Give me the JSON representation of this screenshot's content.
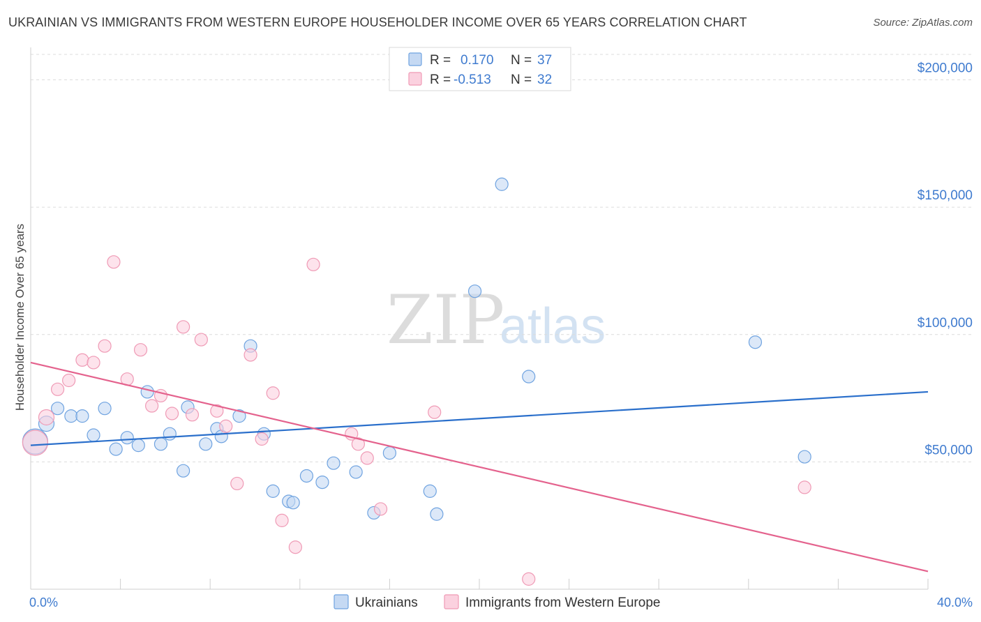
{
  "title": "UKRAINIAN VS IMMIGRANTS FROM WESTERN EUROPE HOUSEHOLDER INCOME OVER 65 YEARS CORRELATION CHART",
  "source": "Source: ZipAtlas.com",
  "watermark": {
    "zip": "ZIP",
    "atlas": "atlas"
  },
  "legend": {
    "rows": [
      {
        "r_label": "R =",
        "r_value": "0.170",
        "n_label": "N =",
        "n_value": "37"
      },
      {
        "r_label": "R =",
        "r_value": "-0.513",
        "n_label": "N =",
        "n_value": "32"
      }
    ]
  },
  "chart_data": {
    "type": "scatter",
    "ylabel": "Householder Income Over 65 years",
    "xlim": [
      0,
      40
    ],
    "ylim": [
      0,
      210000
    ],
    "x_tick_labels": {
      "min": "0.0%",
      "max": "40.0%"
    },
    "y_ticks": [
      {
        "value": 50000,
        "label": "$50,000"
      },
      {
        "value": 100000,
        "label": "$100,000"
      },
      {
        "value": 150000,
        "label": "$150,000"
      },
      {
        "value": 200000,
        "label": "$200,000"
      }
    ],
    "grid": true,
    "legend_position": "top-center",
    "series": [
      {
        "name": "Ukrainians",
        "color": "#6fa3e0",
        "fill": "#c5d9f3",
        "trend_color": "#2a6fcb",
        "trend": {
          "x": [
            0,
            40
          ],
          "y": [
            56500,
            77500
          ]
        },
        "points": [
          [
            0.2,
            58000,
            18
          ],
          [
            0.7,
            65000,
            11
          ],
          [
            1.2,
            71000,
            9
          ],
          [
            1.8,
            68000,
            9
          ],
          [
            2.3,
            68000,
            9
          ],
          [
            2.8,
            60500,
            9
          ],
          [
            3.3,
            71000,
            9
          ],
          [
            3.8,
            55000,
            9
          ],
          [
            4.3,
            59500,
            9
          ],
          [
            4.8,
            56500,
            9
          ],
          [
            5.2,
            77500,
            9
          ],
          [
            5.8,
            57000,
            9
          ],
          [
            6.2,
            61000,
            9
          ],
          [
            6.8,
            46500,
            9
          ],
          [
            7.0,
            71500,
            9
          ],
          [
            7.8,
            57000,
            9
          ],
          [
            8.3,
            63000,
            9
          ],
          [
            8.5,
            60000,
            9
          ],
          [
            9.3,
            68000,
            9
          ],
          [
            9.8,
            95500,
            9
          ],
          [
            10.4,
            61000,
            9
          ],
          [
            10.8,
            38500,
            9
          ],
          [
            11.5,
            34500,
            9
          ],
          [
            11.7,
            34000,
            9
          ],
          [
            12.3,
            44500,
            9
          ],
          [
            13.0,
            42000,
            9
          ],
          [
            13.5,
            49500,
            9
          ],
          [
            14.5,
            46000,
            9
          ],
          [
            15.3,
            30000,
            9
          ],
          [
            16.0,
            53500,
            9
          ],
          [
            17.8,
            38500,
            9
          ],
          [
            18.1,
            29500,
            9
          ],
          [
            19.8,
            117000,
            9
          ],
          [
            21.0,
            159000,
            9
          ],
          [
            22.2,
            83500,
            9
          ],
          [
            32.3,
            97000,
            9
          ],
          [
            34.5,
            52000,
            9
          ]
        ]
      },
      {
        "name": "Immigrants from Western Europe",
        "color": "#ef9ab5",
        "fill": "#fbd1df",
        "trend_color": "#e4628d",
        "trend": {
          "x": [
            0,
            40
          ],
          "y": [
            89000,
            7000
          ]
        },
        "points": [
          [
            0.2,
            57500,
            18
          ],
          [
            0.7,
            67500,
            11
          ],
          [
            1.2,
            78500,
            9
          ],
          [
            1.7,
            82000,
            9
          ],
          [
            2.3,
            90000,
            9
          ],
          [
            2.8,
            89000,
            9
          ],
          [
            3.3,
            95500,
            9
          ],
          [
            3.7,
            128500,
            9
          ],
          [
            4.3,
            82500,
            9
          ],
          [
            4.9,
            94000,
            9
          ],
          [
            5.4,
            72000,
            9
          ],
          [
            5.8,
            76000,
            9
          ],
          [
            6.3,
            69000,
            9
          ],
          [
            6.8,
            103000,
            9
          ],
          [
            7.2,
            68500,
            9
          ],
          [
            7.6,
            98000,
            9
          ],
          [
            8.3,
            70000,
            9
          ],
          [
            8.7,
            64000,
            9
          ],
          [
            9.2,
            41500,
            9
          ],
          [
            9.8,
            92000,
            9
          ],
          [
            10.3,
            59000,
            9
          ],
          [
            10.8,
            77000,
            9
          ],
          [
            11.2,
            27000,
            9
          ],
          [
            11.8,
            16500,
            9
          ],
          [
            12.6,
            127500,
            9
          ],
          [
            14.3,
            61000,
            9
          ],
          [
            14.6,
            57000,
            9
          ],
          [
            15.0,
            51500,
            9
          ],
          [
            15.6,
            31500,
            9
          ],
          [
            18.0,
            69500,
            9
          ],
          [
            22.2,
            4000,
            9
          ],
          [
            34.5,
            40000,
            9
          ]
        ]
      }
    ]
  }
}
